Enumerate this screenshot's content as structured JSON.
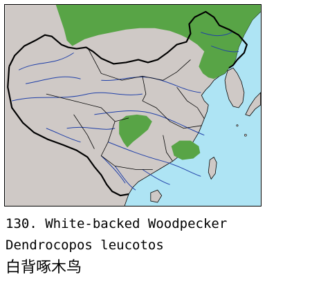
{
  "figure": {
    "number": "130.",
    "common_name": "White-backed Woodpecker",
    "scientific_name": "Dendrocopos leucotos",
    "chinese_name": "白背啄木鸟"
  },
  "map": {
    "colors": {
      "land": "#cfc9c6",
      "sea": "#aee4f4",
      "range": "#58a446",
      "border": "#000000",
      "river": "#1f3fa8"
    },
    "range_regions": [
      "northeast-and-mongolia",
      "central-sichuan-hubei",
      "southeast-jiangxi-fujian"
    ]
  }
}
